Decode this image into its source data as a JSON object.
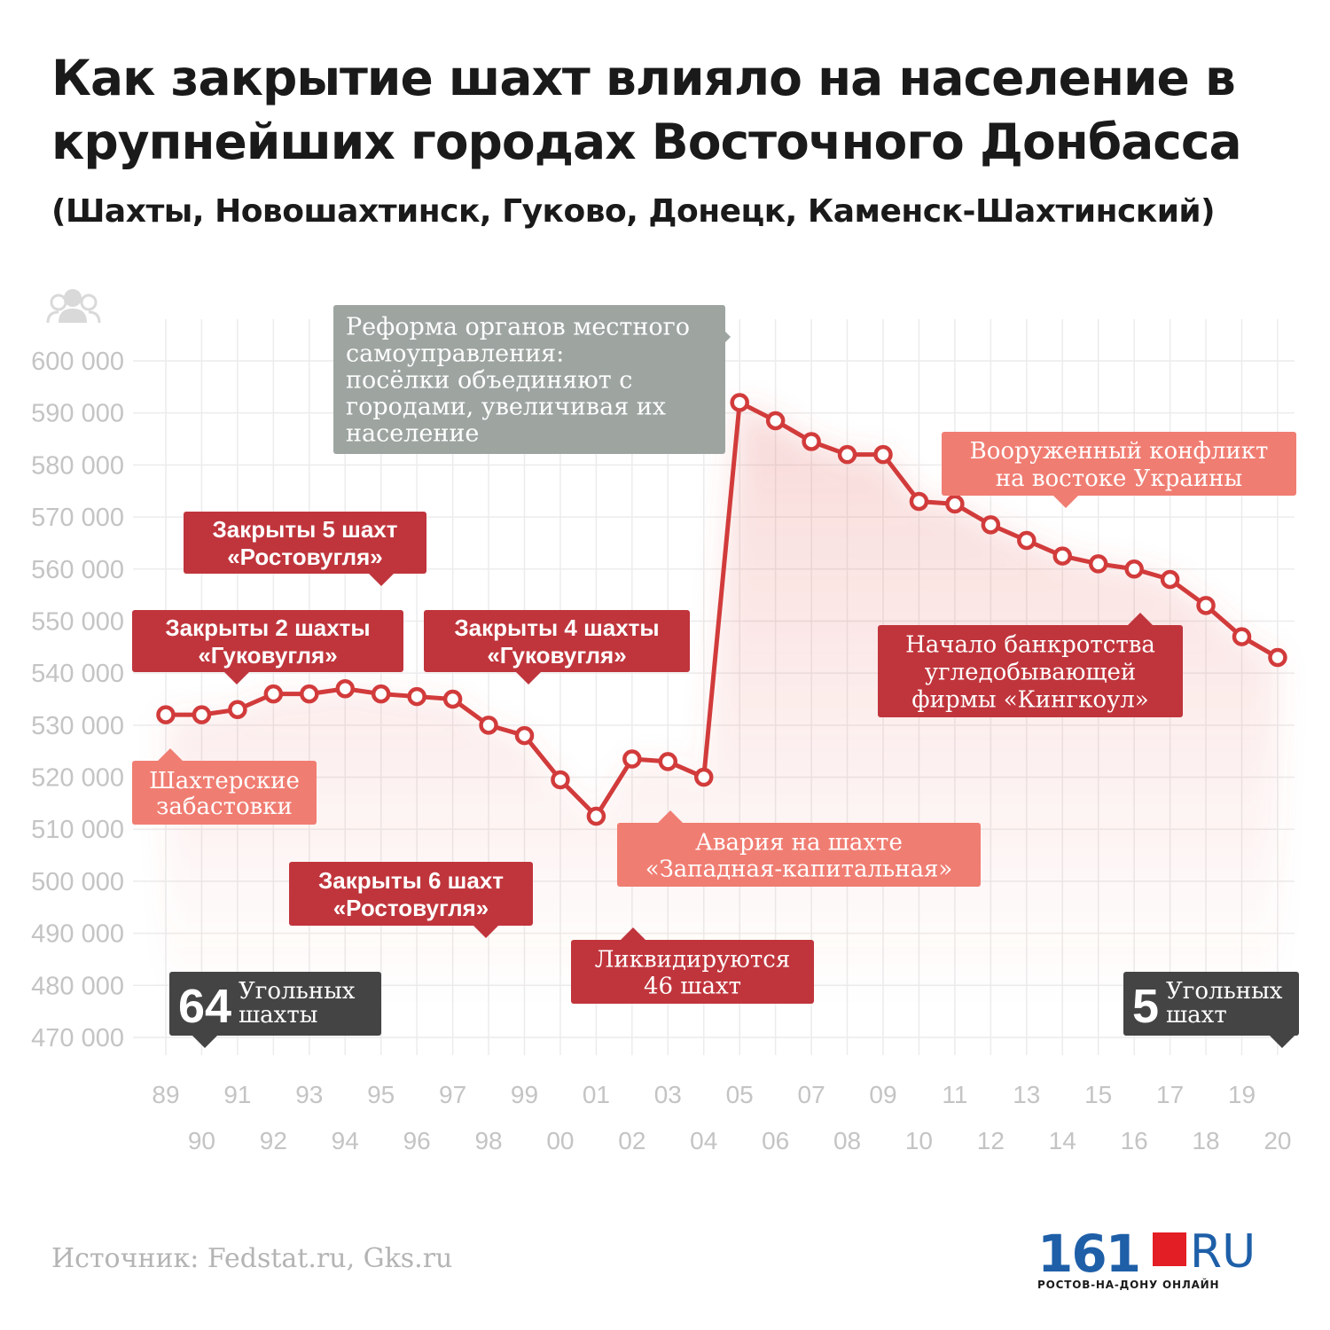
{
  "title": "Как закрытие шахт влияло на население в крупнейших городах Восточного Донбасса",
  "subtitle": "(Шахты, Новошахтинск, Гуково, Донецк, Каменск-Шахтинский)",
  "source": "Источник: Fedstat.ru, Gks.ru",
  "logo": {
    "number": "161",
    "ru": "RU",
    "tagline": "РОСТОВ-НА-ДОНУ ОНЛАЙН"
  },
  "icons": {
    "axis_icon": "people-icon"
  },
  "colors": {
    "line": "#d23b3b",
    "dark_red": "#c0353c",
    "salmon": "#f07d72",
    "grey": "#9ea5a1",
    "dark": "#444444",
    "grid": "#ececec",
    "tick": "#c4c4c4"
  },
  "chart_data": {
    "type": "line",
    "x": [
      "89",
      "90",
      "91",
      "92",
      "93",
      "94",
      "95",
      "96",
      "97",
      "98",
      "99",
      "00",
      "01",
      "02",
      "03",
      "04",
      "05",
      "06",
      "07",
      "08",
      "09",
      "10",
      "11",
      "12",
      "13",
      "14",
      "15",
      "16",
      "17",
      "18",
      "19",
      "20"
    ],
    "series": [
      {
        "values": [
          532000,
          532000,
          533000,
          536000,
          536000,
          537000,
          536000,
          535500,
          535000,
          530000,
          528000,
          519500,
          512500,
          523500,
          523000,
          520000,
          592000,
          588500,
          584500,
          582000,
          582000,
          573000,
          572500,
          568500,
          565500,
          562500,
          561000,
          560000,
          558000,
          553000,
          547000,
          543000
        ]
      }
    ],
    "ylim": [
      470000,
      600000
    ],
    "yticks": [
      "470 000",
      "480 000",
      "490 000",
      "500 000",
      "510 000",
      "520 000",
      "530 000",
      "540 000",
      "550 000",
      "560 000",
      "570 000",
      "580 000",
      "590 000",
      "600 000"
    ],
    "annotations": [
      {
        "lines": [
          "Реформа органов местного",
          "самоуправления:",
          "посёлки объединяют с",
          "городами, увеличивая их",
          "население"
        ],
        "style": "grey"
      },
      {
        "lines": [
          "Закрыты 5 шахт",
          "«Ростовугля»"
        ],
        "style": "dark_red"
      },
      {
        "lines": [
          "Закрыты 2 шахты",
          "«Гуковугля»"
        ],
        "style": "dark_red"
      },
      {
        "lines": [
          "Закрыты 4 шахты",
          "«Гуковугля»"
        ],
        "style": "dark_red"
      },
      {
        "lines": [
          "Шахтерские",
          "забастовки"
        ],
        "style": "salmon"
      },
      {
        "lines": [
          "Авария на шахте",
          "«Западная-капитальная»"
        ],
        "style": "salmon"
      },
      {
        "lines": [
          "Закрыты 6 шахт",
          "«Ростовугля»"
        ],
        "style": "dark_red"
      },
      {
        "lines": [
          "Ликвидируются",
          "46 шахт"
        ],
        "style": "dark_red"
      },
      {
        "lines": [
          "Вооруженный конфликт",
          "на востоке Украины"
        ],
        "style": "salmon"
      },
      {
        "lines": [
          "Начало банкротства",
          "угледобывающей",
          "фирмы «Кингкоул»"
        ],
        "style": "dark_red"
      },
      {
        "number": "64",
        "lines": [
          "Угольных",
          "шахты"
        ],
        "style": "dark"
      },
      {
        "number": "5",
        "lines": [
          "Угольных",
          "шахт"
        ],
        "style": "dark"
      }
    ]
  }
}
